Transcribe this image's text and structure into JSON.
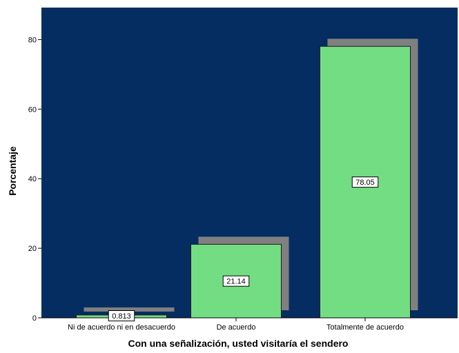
{
  "chart_data": {
    "type": "bar",
    "categories": [
      "Ni de acuerdo ni en desacuerdo",
      "De acuerdo",
      "Totalmente de acuerdo"
    ],
    "values": [
      0.813,
      21.14,
      78.05
    ],
    "data_labels": [
      "0.813",
      "21.14",
      "78.05"
    ],
    "xlabel": "Con una señalización, usted visitaría el sendero",
    "ylabel": "Porcentaje",
    "ylim": [
      0,
      88
    ],
    "yticks": [
      0,
      20,
      40,
      60,
      80
    ],
    "ytick_labels": [
      "0",
      "20",
      "40",
      "60",
      "80"
    ],
    "grid": false,
    "legend": "none",
    "colors": {
      "plot_background": "#052d62",
      "bar_fill": "#73dd83",
      "bar_stroke": "#1a1a1a",
      "bar_shadow": "#808080",
      "label_box_fill": "#ffffff"
    }
  }
}
